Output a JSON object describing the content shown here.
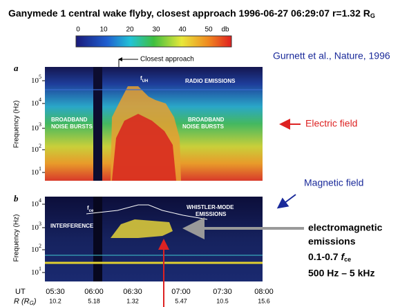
{
  "title": "Ganymede 1 central wake flyby, closest approach 1996-06-27 06:29:07 r=1.32 R",
  "title_sub": "G",
  "colorbar": {
    "labels": [
      "0",
      "10",
      "20",
      "30",
      "40",
      "50"
    ],
    "unit": "db"
  },
  "citation": "Gurnett et al., Nature, 1996",
  "closest_approach": "Closest approach",
  "panel_a": {
    "letter": "a",
    "y_label": "Frequency (Hz)",
    "ticks": [
      {
        "base": "10",
        "exp": "5"
      },
      {
        "base": "10",
        "exp": "4"
      },
      {
        "base": "10",
        "exp": "3"
      },
      {
        "base": "10",
        "exp": "2"
      },
      {
        "base": "10",
        "exp": "1"
      }
    ],
    "annotations": {
      "fuh": "f",
      "fuh_sub": "UH",
      "radio": "RADIO EMISSIONS",
      "bb_left": [
        "BROADBAND",
        "NOISE BURSTS"
      ],
      "bb_right": [
        "BROADBAND",
        "NOISE BURSTS"
      ]
    }
  },
  "panel_b": {
    "letter": "b",
    "y_label": "Frequency (Hz)",
    "ticks": [
      {
        "base": "10",
        "exp": "4"
      },
      {
        "base": "10",
        "exp": "3"
      },
      {
        "base": "10",
        "exp": "2"
      },
      {
        "base": "10",
        "exp": "1"
      }
    ],
    "annotations": {
      "fce": "f",
      "fce_sub": "ce",
      "whistler": [
        "WHISTLER-MODE",
        "EMISSIONS"
      ],
      "interference": "INTERFERENCE"
    }
  },
  "electric_field": "Electric field",
  "magnetic_field": "Magnetic field",
  "emissions": {
    "lines": [
      "electromagnetic",
      "emissions"
    ],
    "ratio": "0.1-0.7 ",
    "ratio_f": "f",
    "ratio_sub": "ce",
    "range": "500 Hz – 5 kHz"
  },
  "x_axis": {
    "ut_label": "UT",
    "ut": [
      "05:30",
      "06:00",
      "06:30",
      "07:00",
      "07:30",
      "08:00"
    ],
    "r_label": "R (R",
    "r_label_sub": "G",
    "r_label_end": ")",
    "r": [
      "10.2",
      "5.18",
      "1.32",
      "5.47",
      "10.5",
      "15.6"
    ]
  }
}
